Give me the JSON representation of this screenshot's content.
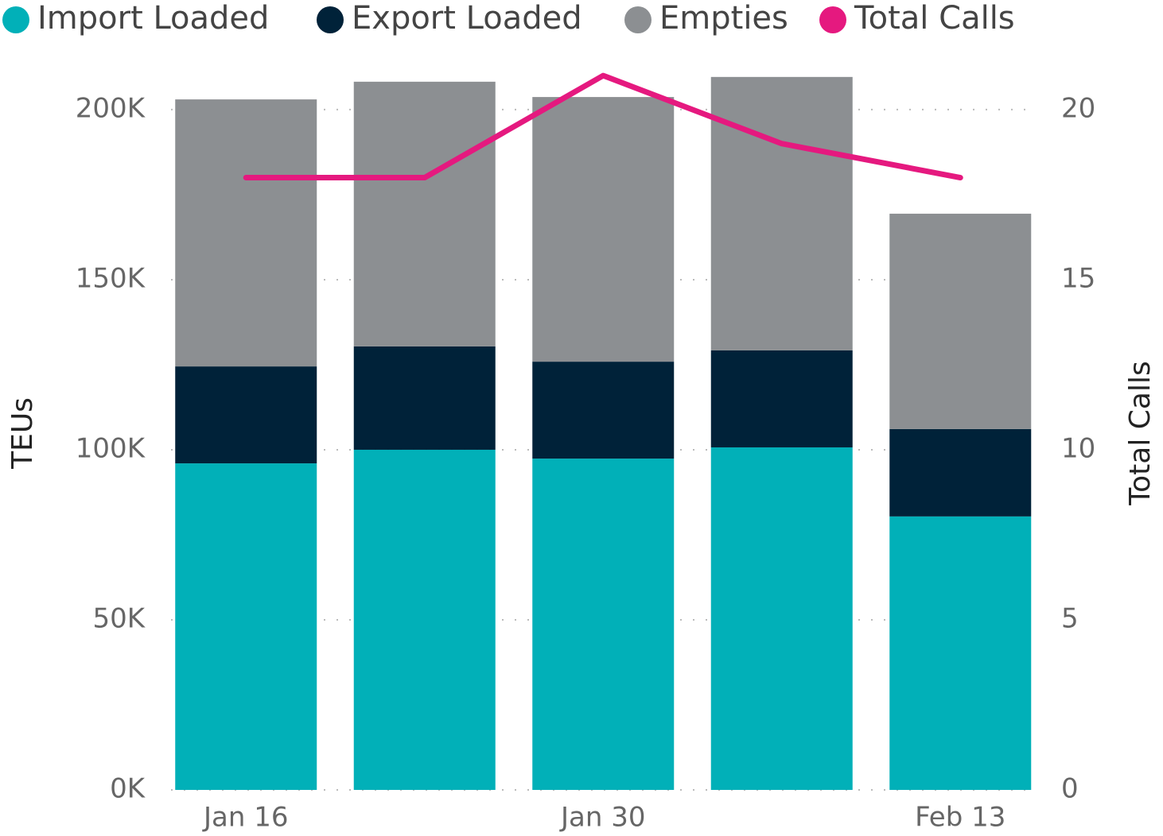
{
  "chart_data": {
    "type": "bar",
    "stacked": true,
    "categories": [
      "Jan 16",
      null,
      "Jan 30",
      null,
      "Feb 13"
    ],
    "series": [
      {
        "name": "Import Loaded",
        "color": "#01b0b8",
        "values": [
          96000,
          100000,
          97400,
          100700,
          80400
        ]
      },
      {
        "name": "Export Loaded",
        "color": "#002239",
        "values": [
          28500,
          30400,
          28500,
          28500,
          25700
        ]
      },
      {
        "name": "Empties",
        "color": "#8c8f92",
        "values": [
          78500,
          77800,
          77800,
          80400,
          63300
        ]
      },
      {
        "name": "Total Calls",
        "color": "#e5197f",
        "type": "line",
        "axis": "y2",
        "values": [
          18,
          18,
          21,
          19,
          18
        ]
      }
    ],
    "ylabel": "TEUs",
    "y2label": "Total Calls",
    "ylim": [
      0,
      214000
    ],
    "yticks": [
      {
        "value": 0,
        "label": "0K"
      },
      {
        "value": 50000,
        "label": "50K"
      },
      {
        "value": 100000,
        "label": "100K"
      },
      {
        "value": 150000,
        "label": "150K"
      },
      {
        "value": 200000,
        "label": "200K"
      }
    ],
    "y2lim": [
      0,
      21.4
    ],
    "y2ticks": [
      0,
      5,
      10,
      15,
      20
    ],
    "grid": true,
    "legend": "top"
  }
}
